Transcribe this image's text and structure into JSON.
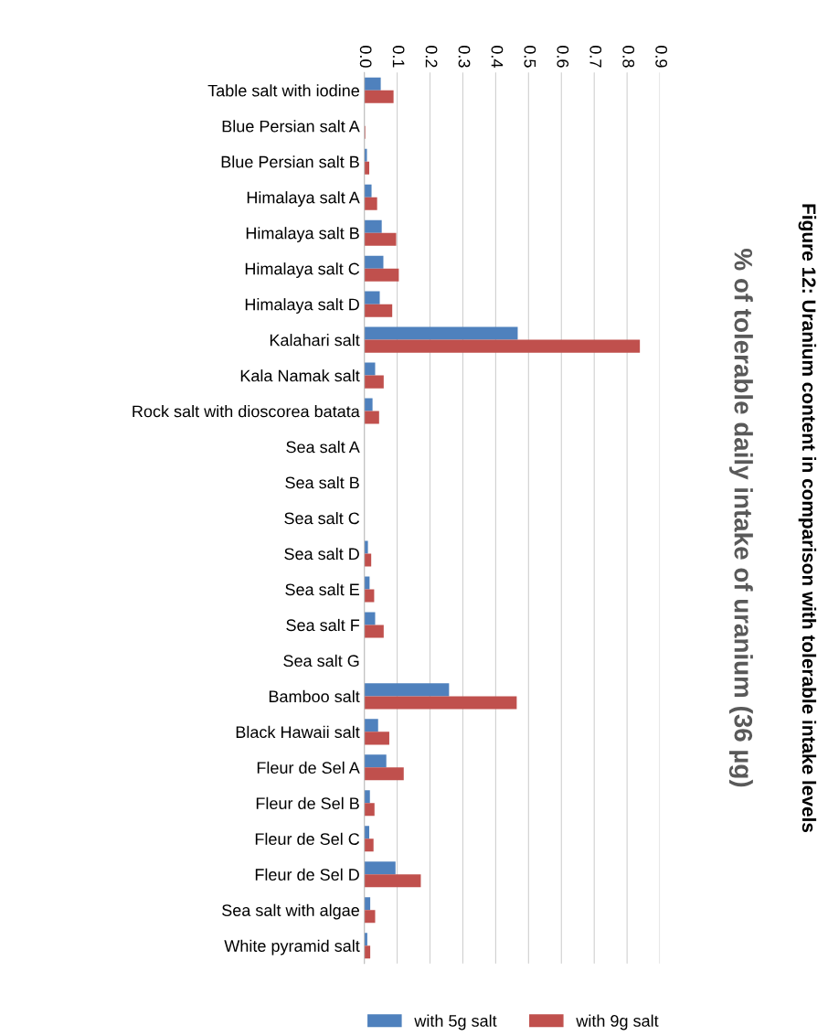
{
  "chart_data": {
    "type": "bar",
    "orientation": "horizontal",
    "title": "Figure 12: Uranium content in comparison with tolerable intake levels",
    "subtitle": "% of tolerable daily intake of uranium (36 µg)",
    "categories": [
      "Table salt with iodine",
      "Blue Persian salt A",
      "Blue Persian salt B",
      "Himalaya salt A",
      "Himalaya salt B",
      "Himalaya salt C",
      "Himalaya salt D",
      "Kalahari salt",
      "Kala Namak salt",
      "Rock salt with dioscorea batata",
      "Sea salt A",
      "Sea salt B",
      "Sea salt C",
      "Sea salt D",
      "Sea salt E",
      "Sea salt F",
      "Sea salt G",
      "Bamboo salt",
      "Black Hawaii salt",
      "Fleur de Sel A",
      "Fleur de Sel B",
      "Fleur de Sel C",
      "Fleur de Sel D",
      "Sea salt with algae",
      "White pyramid salt"
    ],
    "series": [
      {
        "name": "with 5g salt",
        "color": "#4f81bd",
        "values": [
          0.05,
          0,
          0.008,
          0.022,
          0.053,
          0.058,
          0.047,
          0.467,
          0.033,
          0.025,
          0,
          0,
          0,
          0.011,
          0.016,
          0.033,
          0,
          0.258,
          0.042,
          0.067,
          0.017,
          0.015,
          0.095,
          0.018,
          0.009
        ]
      },
      {
        "name": "with 9g salt",
        "color": "#c0504d",
        "values": [
          0.089,
          0.003,
          0.015,
          0.039,
          0.097,
          0.105,
          0.085,
          0.839,
          0.059,
          0.045,
          0,
          0,
          0,
          0.021,
          0.03,
          0.059,
          0,
          0.464,
          0.076,
          0.12,
          0.031,
          0.028,
          0.172,
          0.033,
          0.018
        ]
      }
    ],
    "xlim": [
      0,
      0.9
    ],
    "xticks": [
      {
        "value": 0,
        "label": "0.0"
      },
      0.1,
      0.2,
      0.3,
      0.4,
      0.5,
      0.6,
      0.7,
      0.8,
      0.9
    ],
    "grid": "x",
    "legend": "bottom"
  }
}
